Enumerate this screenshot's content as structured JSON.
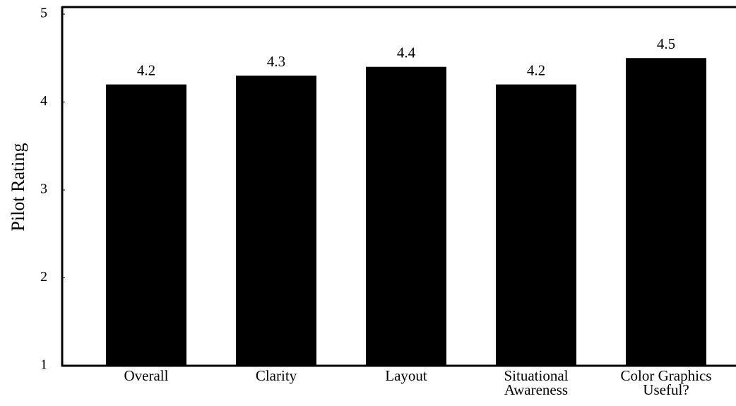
{
  "chart_data": {
    "type": "bar",
    "y_label": "Pilot Rating",
    "categories": [
      "Overall",
      "Clarity",
      "Layout",
      "Situational Awareness",
      "Color Graphics Useful?"
    ],
    "values": [
      4.2,
      4.3,
      4.4,
      4.2,
      4.5
    ],
    "color": "#000000",
    "ylim": [
      1,
      5
    ],
    "yticks": [
      1,
      2,
      3,
      4,
      5
    ],
    "grid": false
  }
}
